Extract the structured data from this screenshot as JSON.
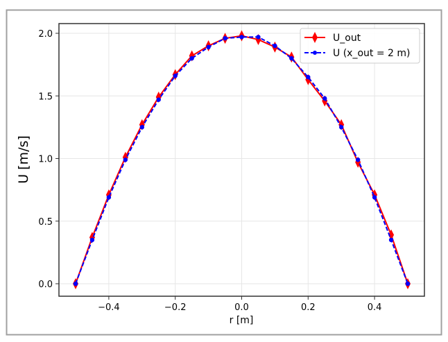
{
  "chart_data": {
    "type": "line",
    "xlabel": "r [m]",
    "ylabel": "U [m/s]",
    "xlim": [
      -0.55,
      0.55
    ],
    "ylim": [
      -0.1,
      2.08
    ],
    "xticks": [
      -0.4,
      -0.2,
      0.0,
      0.2,
      0.4
    ],
    "xtick_labels": [
      "−0.4",
      "−0.2",
      "0.0",
      "0.2",
      "0.4"
    ],
    "yticks": [
      0.0,
      0.5,
      1.0,
      1.5,
      2.0
    ],
    "ytick_labels": [
      "0.0",
      "0.5",
      "1.0",
      "1.5",
      "2.0"
    ],
    "grid": true,
    "legend_position": "top-right",
    "x": [
      -0.5,
      -0.45,
      -0.4,
      -0.35,
      -0.3,
      -0.25,
      -0.2,
      -0.15,
      -0.1,
      -0.05,
      0.0,
      0.05,
      0.1,
      0.15,
      0.2,
      0.25,
      0.3,
      0.35,
      0.4,
      0.45,
      0.5
    ],
    "series": [
      {
        "name": "U_out",
        "color": "#ff0000",
        "linestyle": "solid",
        "marker": "thin-diamond",
        "values": [
          0.0,
          0.37,
          0.71,
          1.01,
          1.27,
          1.49,
          1.67,
          1.82,
          1.9,
          1.96,
          1.98,
          1.95,
          1.89,
          1.81,
          1.63,
          1.46,
          1.27,
          0.97,
          0.71,
          0.39,
          0.0
        ]
      },
      {
        "name": "U (x_out = 2 m)",
        "color": "#0000ff",
        "linestyle": "dashed",
        "marker": "circle",
        "values": [
          0.0,
          0.35,
          0.69,
          0.99,
          1.25,
          1.47,
          1.66,
          1.8,
          1.89,
          1.96,
          1.97,
          1.97,
          1.9,
          1.8,
          1.65,
          1.48,
          1.25,
          0.99,
          0.69,
          0.35,
          0.0
        ]
      }
    ]
  }
}
